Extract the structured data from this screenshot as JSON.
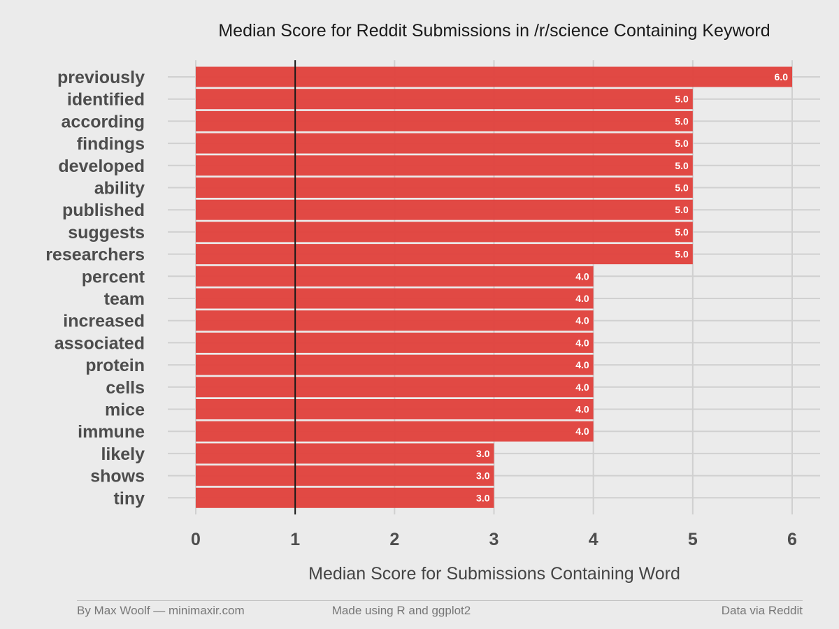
{
  "chart_data": {
    "type": "bar",
    "orientation": "horizontal",
    "title": "Median Score for Reddit Submissions in /r/science Containing Keyword",
    "xlabel": "Median Score for Submissions Containing Word",
    "ylabel": "",
    "xlim": [
      0,
      6
    ],
    "x_ticks": [
      "0",
      "1",
      "2",
      "3",
      "4",
      "5",
      "6"
    ],
    "reference_line": 1,
    "grid": true,
    "bar_color": "#e0403b",
    "categories": [
      "previously",
      "identified",
      "according",
      "findings",
      "developed",
      "ability",
      "published",
      "suggests",
      "researchers",
      "percent",
      "team",
      "increased",
      "associated",
      "protein",
      "cells",
      "mice",
      "immune",
      "likely",
      "shows",
      "tiny"
    ],
    "values": [
      6.0,
      5.0,
      5.0,
      5.0,
      5.0,
      5.0,
      5.0,
      5.0,
      5.0,
      4.0,
      4.0,
      4.0,
      4.0,
      4.0,
      4.0,
      4.0,
      4.0,
      3.0,
      3.0,
      3.0
    ],
    "data_labels": [
      "6.0",
      "5.0",
      "5.0",
      "5.0",
      "5.0",
      "5.0",
      "5.0",
      "5.0",
      "5.0",
      "4.0",
      "4.0",
      "4.0",
      "4.0",
      "4.0",
      "4.0",
      "4.0",
      "4.0",
      "3.0",
      "3.0",
      "3.0"
    ]
  },
  "footer": {
    "left": "By Max Woolf — minimaxir.com",
    "center": "Made using R and ggplot2",
    "right": "Data via Reddit"
  }
}
